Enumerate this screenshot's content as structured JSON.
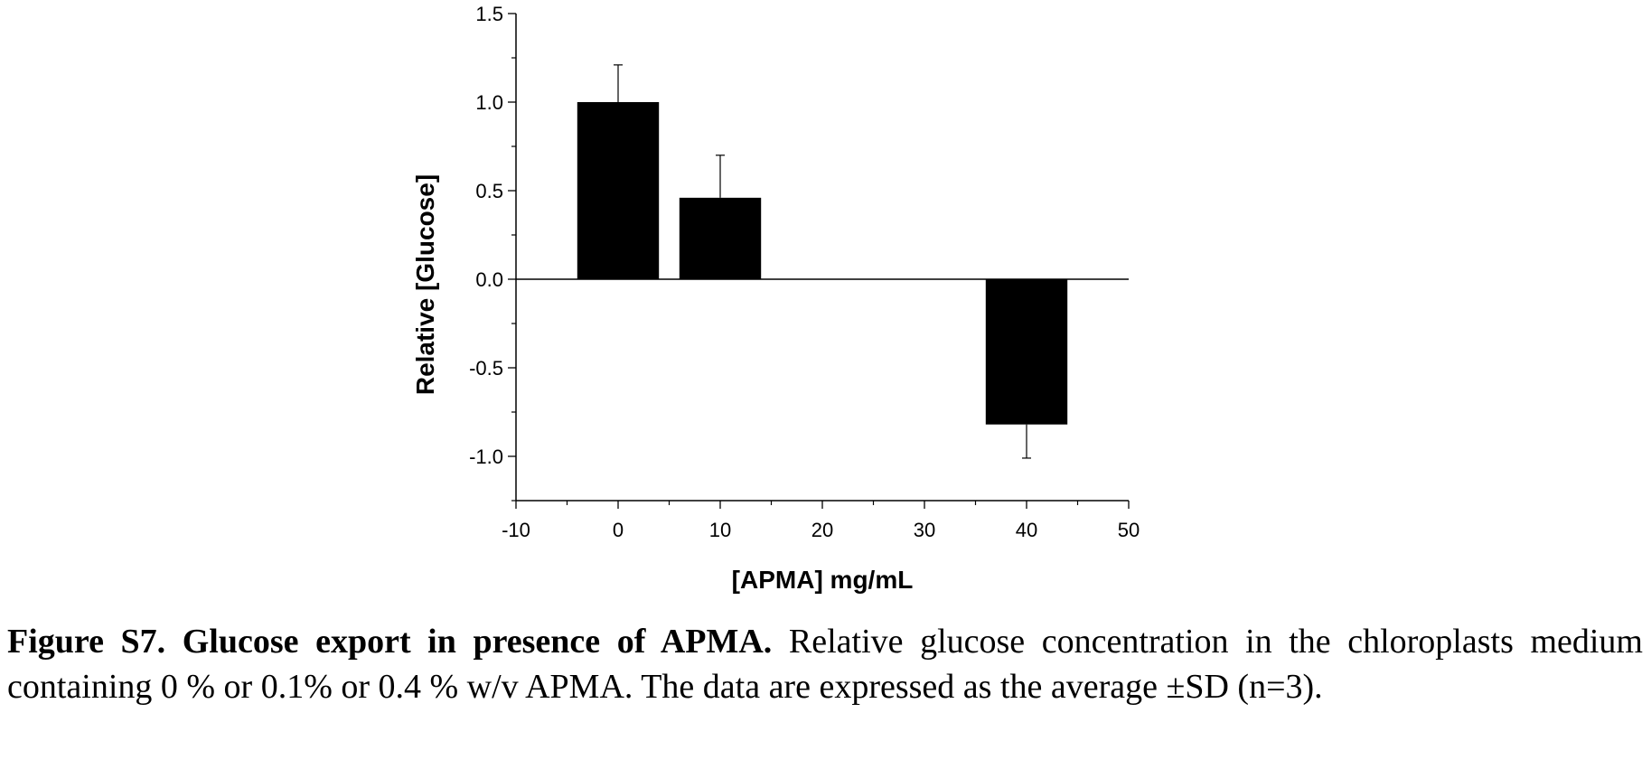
{
  "chart_data": {
    "type": "bar",
    "x": [
      0,
      10,
      40
    ],
    "values": [
      1.0,
      0.46,
      -0.82
    ],
    "errors": [
      0.21,
      0.24,
      0.19
    ],
    "xlabel": "[APMA] mg/mL",
    "ylabel": "Relative [Glucose]",
    "xlim": [
      -10,
      50
    ],
    "ylim": [
      -1.25,
      1.5
    ],
    "xticks": [
      -10,
      0,
      10,
      20,
      30,
      40,
      50
    ],
    "xtick_labels": [
      "-10",
      "0",
      "10",
      "20",
      "30",
      "40",
      "50"
    ],
    "yticks": [
      -1.0,
      -0.5,
      0.0,
      0.5,
      1.0,
      1.5
    ],
    "ytick_labels": [
      "-1.0",
      "-0.5",
      "0.0",
      "0.5",
      "1.0",
      "1.5"
    ],
    "bar_color": "#000000",
    "grid": false
  },
  "caption": {
    "title": "Figure S7. Glucose export in presence of APMA.",
    "text": " Relative glucose concentration in the chloroplasts medium containing 0 % or 0.1% or 0.4 % w/v APMA. The data are expressed as the average ±SD (n=3)."
  }
}
